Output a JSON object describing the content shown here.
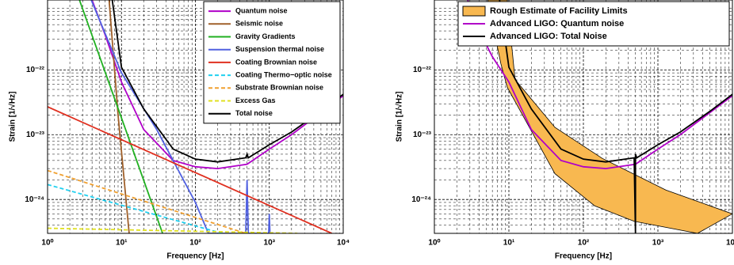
{
  "chart_data": [
    {
      "type": "line",
      "xlabel": "Frequency [Hz]",
      "ylabel": "Strain [1/√Hz]",
      "log_x": true,
      "log_y": true,
      "grid": true,
      "minor_grid": true,
      "xlim": [
        1,
        10000
      ],
      "ylim": [
        3e-25,
        1.2e-21
      ],
      "xticks": [
        {
          "value": 1,
          "label": "10⁰"
        },
        {
          "value": 10,
          "label": "10¹"
        },
        {
          "value": 100,
          "label": "10²"
        },
        {
          "value": 1000,
          "label": "10³"
        },
        {
          "value": 10000,
          "label": "10⁴"
        }
      ],
      "yticks": [
        {
          "value": 1e-24,
          "label": "10⁻²⁴"
        },
        {
          "value": 1e-23,
          "label": "10⁻²³"
        },
        {
          "value": 1e-22,
          "label": "10⁻²²"
        }
      ],
      "legend": "upper right",
      "series": [
        {
          "name": "Quantum noise",
          "color": "#b000c8",
          "x": [
            4,
            6,
            10,
            20,
            50,
            100,
            200,
            500,
            1000,
            2000,
            5000,
            10000
          ],
          "values": [
            1.2e-21,
            3.5e-22,
            6.5e-23,
            1.2e-23,
            4e-24,
            3.2e-24,
            3e-24,
            3.5e-24,
            6e-24,
            1e-23,
            2.2e-23,
            4e-23
          ]
        },
        {
          "name": "Seismic noise",
          "color": "#a0602a",
          "x": [
            6.8,
            9,
            12.7
          ],
          "values": [
            1.2e-21,
            2e-23,
            3e-25
          ]
        },
        {
          "name": "Gravity Gradients",
          "color": "#20b020",
          "x": [
            2.7,
            36
          ],
          "values": [
            1.2e-21,
            3e-25
          ]
        },
        {
          "name": "Suspension thermal noise",
          "color": "#5060e0",
          "x": [
            3.9,
            10,
            30,
            100,
            150,
            480,
            500,
            520,
            980,
            1000,
            1020
          ],
          "values": [
            1.2e-21,
            9e-23,
            1.2e-23,
            9e-25,
            3e-25,
            3e-25,
            2e-24,
            3e-25,
            3e-25,
            6e-25,
            3e-25
          ]
        },
        {
          "name": "Coating Brownian noise",
          "color": "#e03020",
          "x": [
            1,
            7000
          ],
          "values": [
            2.7e-23,
            3e-25
          ]
        },
        {
          "name": "Coating Thermo−optic noise",
          "color": "#20d0f0",
          "dash": true,
          "x": [
            1,
            230
          ],
          "values": [
            1.7e-24,
            3e-25
          ]
        },
        {
          "name": "Substrate Brownian noise",
          "color": "#f0a030",
          "dash": true,
          "x": [
            1,
            480
          ],
          "values": [
            2.8e-24,
            3e-25
          ]
        },
        {
          "name": "Excess Gas",
          "color": "#e0e020",
          "dash": true,
          "x": [
            1,
            2400
          ],
          "values": [
            3.6e-25,
            3e-25
          ]
        },
        {
          "name": "Total noise",
          "color": "#000000",
          "x": [
            7.5,
            10,
            20,
            50,
            100,
            200,
            480,
            500,
            520,
            1000,
            2000,
            5000,
            10000
          ],
          "values": [
            1.2e-21,
            1.1e-22,
            2.5e-23,
            6e-24,
            4.2e-24,
            3.8e-24,
            4.4e-24,
            5e-24,
            4.4e-24,
            7e-24,
            1.1e-23,
            2.3e-23,
            4.2e-23
          ]
        }
      ]
    },
    {
      "type": "line",
      "xlabel": "Frequency [Hz]",
      "ylabel": "Strain [1/√Hz]",
      "log_x": true,
      "log_y": true,
      "grid": true,
      "minor_grid": true,
      "xlim": [
        1,
        10000
      ],
      "ylim": [
        3e-25,
        1.2e-21
      ],
      "xticks": [
        {
          "value": 1,
          "label": "10⁰"
        },
        {
          "value": 10,
          "label": "10¹"
        },
        {
          "value": 100,
          "label": "10²"
        },
        {
          "value": 1000,
          "label": "10³"
        },
        {
          "value": 10000,
          "label": "10⁴"
        }
      ],
      "yticks": [
        {
          "value": 1e-24,
          "label": "10⁻²⁴"
        },
        {
          "value": 1e-23,
          "label": "10⁻²³"
        },
        {
          "value": 1e-22,
          "label": "10⁻²²"
        }
      ],
      "legend": "upper right",
      "series": [
        {
          "name": "Rough Estimate of Facility Limits",
          "type": "band",
          "color": "#f8b850",
          "x_upper": [
            9.5,
            12.1,
            41.5,
            180,
            1280,
            10000
          ],
          "upper": [
            1.2e-21,
            7.1e-23,
            1.3e-23,
            4.3e-24,
            1.4e-24,
            6e-25
          ],
          "x_lower": [
            5.2,
            7.8,
            9.5,
            41.5,
            141,
            480,
            3400
          ],
          "lower": [
            1.2e-21,
            1.25e-22,
            5.4e-23,
            2.5e-24,
            8e-25,
            4.6e-25,
            3e-25
          ]
        },
        {
          "name": "Advanced LIGO: Quantum noise",
          "color": "#b000c8",
          "x": [
            2.8,
            4,
            6,
            10,
            20,
            50,
            100,
            200,
            500,
            1000,
            2000,
            5000,
            10000
          ],
          "values": [
            1.2e-21,
            4e-22,
            1.6e-22,
            6.5e-23,
            1.2e-23,
            4e-24,
            3.2e-24,
            3e-24,
            3.5e-24,
            6e-24,
            1e-23,
            2.2e-23,
            4e-23
          ]
        },
        {
          "name": "Advanced LIGO: Total Noise",
          "color": "#000000",
          "x": [
            7.5,
            10,
            20,
            50,
            100,
            200,
            480,
            500,
            500,
            520,
            1000,
            2000,
            5000,
            10000
          ],
          "values": [
            1.2e-21,
            1.1e-22,
            2.5e-23,
            6e-24,
            4.2e-24,
            3.8e-24,
            4.4e-24,
            3e-25,
            5e-24,
            4.4e-24,
            7e-24,
            1.1e-23,
            2.3e-23,
            4.2e-23
          ]
        }
      ]
    }
  ]
}
